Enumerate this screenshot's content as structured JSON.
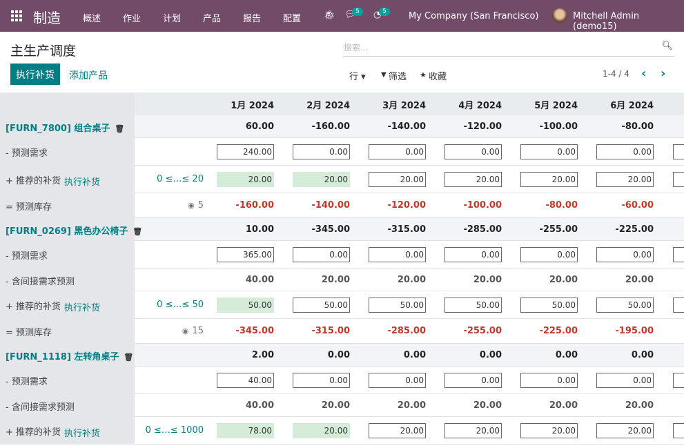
{
  "navbar": {
    "app": "制造",
    "menu": [
      "概述",
      "作业",
      "计划",
      "产品",
      "报告",
      "配置"
    ],
    "messages_count": "5",
    "activities_count": "5",
    "company": "My Company (San Francisco)",
    "user": "Mitchell Admin (demo15)",
    "accent": "#714b67"
  },
  "page": {
    "title": "主生产调度",
    "replenish_button": "执行补货",
    "add_product_button": "添加产品"
  },
  "search": {
    "placeholder": "搜索..."
  },
  "toolbar": {
    "rows": "行 ▾",
    "filter": "筛选",
    "favorites": "收藏",
    "pager": "1-4 / 4"
  },
  "months": [
    "1月 2024",
    "2月 2024",
    "3月 2024",
    "4月 2024",
    "5月 2024",
    "6月 2024"
  ],
  "products": [
    {
      "name": "[FURN_7800] 组合桌子",
      "totals": [
        "60.00",
        "-160.00",
        "-140.00",
        "-120.00",
        "-100.00",
        "-80.00"
      ],
      "rows": [
        {
          "type": "demand",
          "label": "- 预测需求",
          "values": [
            "240.00",
            "0.00",
            "0.00",
            "0.00",
            "0.00",
            "0.00"
          ]
        },
        {
          "type": "replenish",
          "label": "+ 推荐的补货",
          "action": "执行补货",
          "range": "0 ≤…≤ 20",
          "values": [
            "20.00",
            "20.00",
            "20.00",
            "20.00",
            "20.00",
            "20.00"
          ],
          "suggested": [
            true,
            true,
            false,
            false,
            false,
            false
          ]
        },
        {
          "type": "stock",
          "label": "= 预测库存",
          "safety": "5",
          "values": [
            "-160.00",
            "-140.00",
            "-120.00",
            "-100.00",
            "-80.00",
            "-60.00"
          ]
        }
      ]
    },
    {
      "name": "[FURN_0269] 黑色办公椅子",
      "totals": [
        "10.00",
        "-345.00",
        "-315.00",
        "-285.00",
        "-255.00",
        "-225.00"
      ],
      "rows": [
        {
          "type": "demand",
          "label": "- 预测需求",
          "values": [
            "365.00",
            "0.00",
            "0.00",
            "0.00",
            "0.00",
            "0.00"
          ]
        },
        {
          "type": "indirect",
          "label": "- 含间接需求预测",
          "values": [
            "40.00",
            "20.00",
            "20.00",
            "20.00",
            "20.00",
            "20.00"
          ]
        },
        {
          "type": "replenish",
          "label": "+ 推荐的补货",
          "action": "执行补货",
          "range": "0 ≤…≤ 50",
          "values": [
            "50.00",
            "50.00",
            "50.00",
            "50.00",
            "50.00",
            "50.00"
          ],
          "suggested": [
            true,
            false,
            false,
            false,
            false,
            false
          ]
        },
        {
          "type": "stock",
          "label": "= 预测库存",
          "safety": "15",
          "values": [
            "-345.00",
            "-315.00",
            "-285.00",
            "-255.00",
            "-225.00",
            "-195.00"
          ]
        }
      ]
    },
    {
      "name": "[FURN_1118] 左转角桌子",
      "totals": [
        "2.00",
        "0.00",
        "0.00",
        "0.00",
        "0.00",
        "0.00"
      ],
      "rows": [
        {
          "type": "demand",
          "label": "- 预测需求",
          "values": [
            "40.00",
            "0.00",
            "0.00",
            "0.00",
            "0.00",
            "0.00"
          ]
        },
        {
          "type": "indirect",
          "label": "- 含间接需求预测",
          "values": [
            "40.00",
            "20.00",
            "20.00",
            "20.00",
            "20.00",
            "20.00"
          ]
        },
        {
          "type": "replenish",
          "label": "+ 推荐的补货",
          "action": "执行补货",
          "range": "0 ≤…≤ 1000",
          "values": [
            "78.00",
            "20.00",
            "20.00",
            "20.00",
            "20.00",
            "20.00"
          ],
          "suggested": [
            true,
            true,
            false,
            false,
            false,
            false
          ]
        }
      ]
    }
  ]
}
